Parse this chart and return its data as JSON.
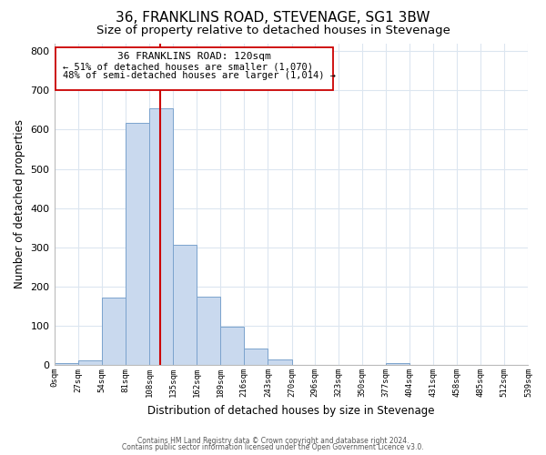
{
  "title": "36, FRANKLINS ROAD, STEVENAGE, SG1 3BW",
  "subtitle": "Size of property relative to detached houses in Stevenage",
  "xlabel": "Distribution of detached houses by size in Stevenage",
  "ylabel": "Number of detached properties",
  "bar_edges": [
    0,
    27,
    54,
    81,
    108,
    135,
    162,
    189,
    216,
    243,
    270,
    296,
    323,
    350,
    377,
    404,
    431,
    458,
    485,
    512,
    539
  ],
  "bar_heights": [
    5,
    12,
    172,
    618,
    655,
    307,
    175,
    98,
    42,
    14,
    0,
    0,
    0,
    0,
    5,
    0,
    0,
    0,
    0,
    0
  ],
  "bar_color": "#c9d9ee",
  "bar_edgecolor": "#7ba3cd",
  "vline_x": 120,
  "vline_color": "#cc0000",
  "ylim": [
    0,
    820
  ],
  "xlim": [
    0,
    539
  ],
  "annotation_title": "36 FRANKLINS ROAD: 120sqm",
  "annotation_line1": "← 51% of detached houses are smaller (1,070)",
  "annotation_line2": "48% of semi-detached houses are larger (1,014) →",
  "xtick_labels": [
    "0sqm",
    "27sqm",
    "54sqm",
    "81sqm",
    "108sqm",
    "135sqm",
    "162sqm",
    "189sqm",
    "216sqm",
    "243sqm",
    "270sqm",
    "296sqm",
    "323sqm",
    "350sqm",
    "377sqm",
    "404sqm",
    "431sqm",
    "458sqm",
    "485sqm",
    "512sqm",
    "539sqm"
  ],
  "xtick_positions": [
    0,
    27,
    54,
    81,
    108,
    135,
    162,
    189,
    216,
    243,
    270,
    296,
    323,
    350,
    377,
    404,
    431,
    458,
    485,
    512,
    539
  ],
  "footer_line1": "Contains HM Land Registry data © Crown copyright and database right 2024.",
  "footer_line2": "Contains public sector information licensed under the Open Government Licence v3.0.",
  "background_color": "#ffffff",
  "grid_color": "#dce6f0",
  "title_fontsize": 11,
  "subtitle_fontsize": 9.5,
  "ylabel_fontsize": 8.5,
  "xlabel_fontsize": 8.5,
  "footer_fontsize": 5.5
}
